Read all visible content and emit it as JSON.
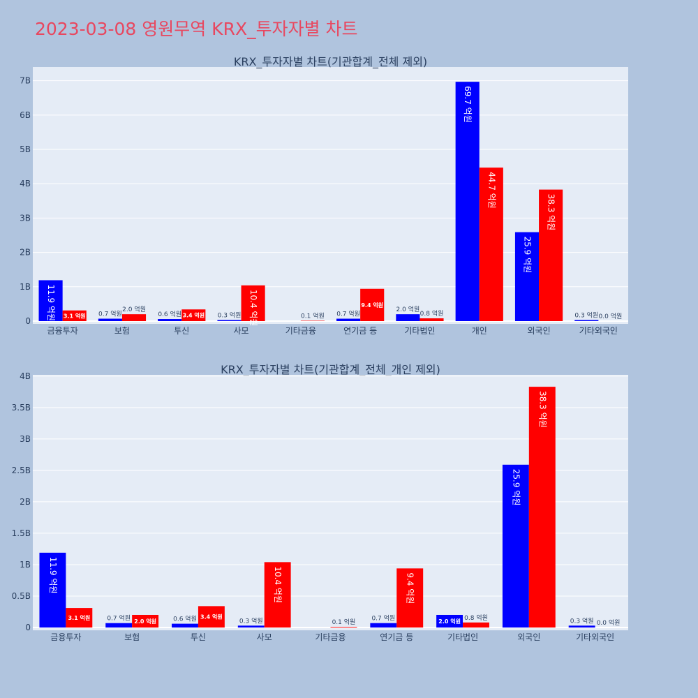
{
  "page_title": "2023-03-08 영원무역 KRX_투자자별 차트",
  "colors": {
    "series_a": "#0000ff",
    "series_b": "#ff0000",
    "plot_bg": "#e5ecf6",
    "page_bg": "#b0c4de",
    "title": "#e8475f"
  },
  "chart_data": [
    {
      "type": "bar",
      "title": "KRX_투자자별 차트(기관합계_전체 제외)",
      "categories": [
        "금융투자",
        "보험",
        "투신",
        "사모",
        "기타금융",
        "연기금 등",
        "기타법인",
        "개인",
        "외국인",
        "기타외국인"
      ],
      "series": [
        {
          "values": [
            1.19,
            0.07,
            0.06,
            0.03,
            0.0,
            0.07,
            0.2,
            6.97,
            2.59,
            0.03
          ],
          "labels": [
            "11.9 억원",
            "0.7 억원",
            "0.6 억원",
            "0.3 억원",
            "",
            "0.7 억원",
            "2.0 억원",
            "69.7 억원",
            "25.9 억원",
            "0.3 억원"
          ]
        },
        {
          "values": [
            0.31,
            0.2,
            0.34,
            1.04,
            0.01,
            0.94,
            0.08,
            4.47,
            3.83,
            0.0
          ],
          "labels": [
            "3.1 억원",
            "2.0 억원",
            "3.4 억원",
            "10.4 억원",
            "0.1 억원",
            "9.4 억원",
            "0.8 억원",
            "44.7 억원",
            "38.3 억원",
            "0.0 억원"
          ]
        }
      ],
      "unit": "B",
      "ylim": [
        0,
        7.4
      ],
      "yticks": [
        0,
        1,
        2,
        3,
        4,
        5,
        6,
        7
      ],
      "ytick_labels": [
        "0",
        "1B",
        "2B",
        "3B",
        "4B",
        "5B",
        "6B",
        "7B"
      ],
      "grid": true,
      "legend": "none"
    },
    {
      "type": "bar",
      "title": "KRX_투자자별 차트(기관합계_전체_개인 제외)",
      "categories": [
        "금융투자",
        "보험",
        "투신",
        "사모",
        "기타금융",
        "연기금 등",
        "기타법인",
        "외국인",
        "기타외국인"
      ],
      "series": [
        {
          "values": [
            1.19,
            0.07,
            0.06,
            0.03,
            0.0,
            0.07,
            0.2,
            2.59,
            0.03
          ],
          "labels": [
            "11.9 억원",
            "0.7 억원",
            "0.6 억원",
            "0.3 억원",
            "",
            "0.7 억원",
            "2.0 억원",
            "25.9 억원",
            "0.3 억원"
          ]
        },
        {
          "values": [
            0.31,
            0.2,
            0.34,
            1.04,
            0.01,
            0.94,
            0.08,
            3.83,
            0.0
          ],
          "labels": [
            "3.1 억원",
            "2.0 억원",
            "3.4 억원",
            "10.4 억원",
            "0.1 억원",
            "9.4 억원",
            "0.8 억원",
            "38.3 억원",
            "0.0 억원"
          ]
        }
      ],
      "unit": "B",
      "ylim": [
        0,
        4.02
      ],
      "yticks": [
        0,
        0.5,
        1,
        1.5,
        2,
        2.5,
        3,
        3.5,
        4
      ],
      "ytick_labels": [
        "0",
        "0.5B",
        "1B",
        "1.5B",
        "2B",
        "2.5B",
        "3B",
        "3.5B",
        "4B"
      ],
      "grid": true,
      "legend": "none"
    }
  ]
}
